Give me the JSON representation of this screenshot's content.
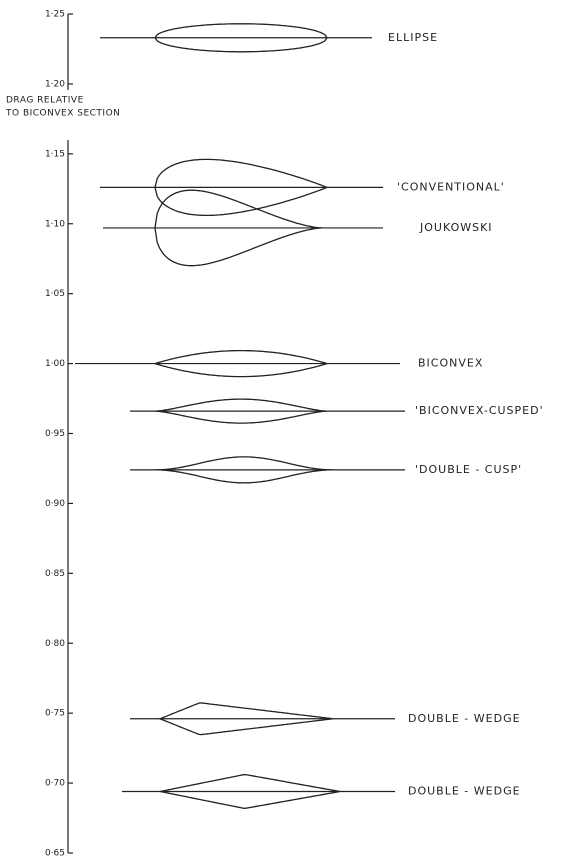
{
  "chart_data": {
    "type": "profile",
    "y_label": [
      "DRAG RELATIVE",
      "TO BICONVEX SECTION"
    ],
    "categories": [
      "ELLIPSE",
      "'CONVENTIONAL'",
      "JOUKOWSKI",
      "BICONVEX",
      "'BICONVEX-CUSPED'",
      "'DOUBLE - CUSP'",
      "DOUBLE - WEDGE",
      "DOUBLE - WEDGE"
    ],
    "values": [
      1.233,
      1.126,
      1.097,
      1.0,
      0.966,
      0.924,
      0.746,
      0.694
    ],
    "color": "#222222",
    "ylim": [
      0.65,
      1.25
    ],
    "yticks": [
      {
        "value": 0.65,
        "label": "0·65"
      },
      {
        "value": 0.7,
        "label": "0·70"
      },
      {
        "value": 0.75,
        "label": "0·75"
      },
      {
        "value": 0.8,
        "label": "0·80"
      },
      {
        "value": 0.85,
        "label": "0·85"
      },
      {
        "value": 0.9,
        "label": "0·90"
      },
      {
        "value": 0.95,
        "label": "0·95"
      },
      {
        "value": 1.0,
        "label": "1·00"
      },
      {
        "value": 1.05,
        "label": "1·05"
      },
      {
        "value": 1.1,
        "label": "1·10"
      },
      {
        "value": 1.15,
        "label": "1·15"
      },
      {
        "value": 1.2,
        "label": "1·20"
      },
      {
        "value": 1.25,
        "label": "1·25"
      }
    ]
  }
}
